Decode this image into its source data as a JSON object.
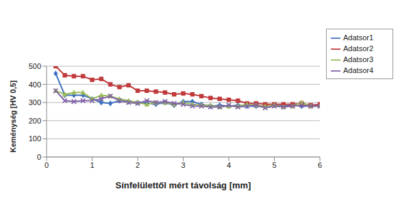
{
  "chart_data": {
    "type": "line",
    "x_label": "Sínfelülettől mért távolság [mm]",
    "y_label": "Keménység  [HV 0,5]",
    "x": [
      0.2,
      0.4,
      0.6,
      0.8,
      1.0,
      1.2,
      1.4,
      1.6,
      1.8,
      2.0,
      2.2,
      2.4,
      2.6,
      2.8,
      3.0,
      3.2,
      3.4,
      3.6,
      3.8,
      4.0,
      4.2,
      4.4,
      4.6,
      4.8,
      5.0,
      5.2,
      5.4,
      5.6,
      5.8,
      6.0
    ],
    "series": [
      {
        "name": "Adatsor1",
        "color": "#3d6fc0",
        "marker": "diamond",
        "values": [
          460,
          340,
          340,
          340,
          320,
          300,
          295,
          310,
          305,
          300,
          295,
          290,
          300,
          285,
          305,
          305,
          290,
          280,
          285,
          280,
          285,
          280,
          280,
          280,
          285,
          280,
          285,
          280,
          280,
          285
        ]
      },
      {
        "name": "Adatsor2",
        "color": "#c0393b",
        "marker": "square",
        "values": [
          500,
          450,
          445,
          445,
          425,
          430,
          400,
          385,
          395,
          365,
          365,
          360,
          355,
          345,
          350,
          345,
          335,
          325,
          320,
          315,
          310,
          295,
          295,
          290,
          290,
          290,
          290,
          295,
          285,
          290
        ]
      },
      {
        "name": "Adatsor3",
        "color": "#9bbb59",
        "marker": "triangle",
        "values": [
          365,
          345,
          355,
          355,
          320,
          340,
          335,
          320,
          310,
          300,
          290,
          300,
          300,
          290,
          300,
          290,
          285,
          285,
          275,
          280,
          280,
          290,
          285,
          280,
          285,
          275,
          280,
          300,
          280,
          280
        ]
      },
      {
        "name": "Adatsor4",
        "color": "#7f5fa8",
        "marker": "x",
        "values": [
          365,
          310,
          305,
          310,
          310,
          320,
          335,
          310,
          300,
          295,
          310,
          300,
          305,
          295,
          290,
          280,
          280,
          275,
          275,
          285,
          275,
          280,
          285,
          270,
          280,
          275,
          280,
          285,
          280,
          280
        ]
      }
    ],
    "xlim": [
      0,
      6
    ],
    "xticks": [
      0,
      1,
      2,
      3,
      4,
      5,
      6
    ],
    "ylim": [
      0,
      500
    ],
    "yticks": [
      0,
      100,
      200,
      300,
      400,
      500
    ],
    "grid": true,
    "legend": "upper right"
  }
}
